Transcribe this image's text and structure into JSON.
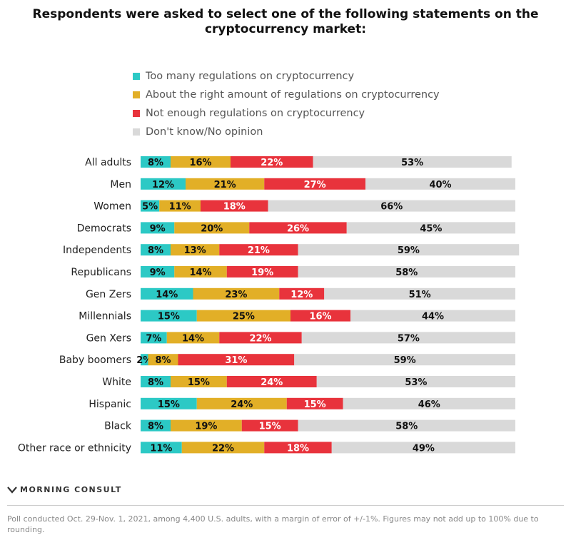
{
  "chart_data": {
    "type": "bar",
    "orientation": "horizontal",
    "stacked": true,
    "title": "Respondents were asked to select one of the following statements on the cryptocurrency market:",
    "categories": [
      "All adults",
      "Men",
      "Women",
      "Democrats",
      "Independents",
      "Republicans",
      "Gen Zers",
      "Millennials",
      "Gen Xers",
      "Baby boomers",
      "White",
      "Hispanic",
      "Black",
      "Other race or ethnicity"
    ],
    "series": [
      {
        "name": "Too many regulations on cryptocurrency",
        "color": "#2cc9c5",
        "text_color": "#111111",
        "values": [
          8,
          12,
          5,
          9,
          8,
          9,
          14,
          15,
          7,
          2,
          8,
          15,
          8,
          11
        ]
      },
      {
        "name": "About the right amount of regulations on cryptocurrency",
        "color": "#e2af27",
        "text_color": "#111111",
        "values": [
          16,
          21,
          11,
          20,
          13,
          14,
          23,
          25,
          14,
          8,
          15,
          24,
          19,
          22
        ]
      },
      {
        "name": "Not enough regulations on cryptocurrency",
        "color": "#e8333c",
        "text_color": "#ffffff",
        "values": [
          22,
          27,
          18,
          26,
          21,
          19,
          12,
          16,
          22,
          31,
          24,
          15,
          15,
          18
        ]
      },
      {
        "name": "Don't know/No opinion",
        "color": "#d9d9d9",
        "text_color": "#111111",
        "values": [
          53,
          40,
          66,
          45,
          59,
          58,
          51,
          44,
          57,
          59,
          53,
          46,
          58,
          49
        ]
      }
    ],
    "value_suffix": "%",
    "xlim": [
      0,
      100
    ]
  },
  "brand": {
    "name": "MORNING CONSULT"
  },
  "footnote": "Poll conducted Oct. 29-Nov. 1, 2021, among 4,400 U.S. adults, with a margin of error of +/-1%. Figures may not add up to 100% due to rounding."
}
